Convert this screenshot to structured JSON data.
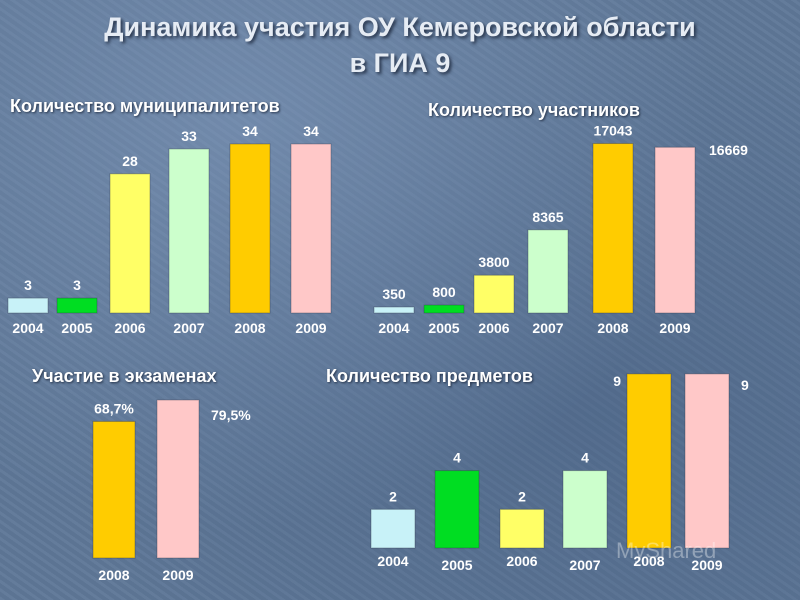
{
  "title": {
    "line1": "Динамика участия ОУ Кемеровской области",
    "line2": "в ГИА 9"
  },
  "colors": {
    "2004": "#c8f2f8",
    "2005": "#00dd22",
    "2006": "#ffff66",
    "2007": "#ccffcc",
    "2008": "#ffcc00",
    "2009": "#ffc8c8"
  },
  "watermark": "MyShared",
  "chart_data": [
    {
      "type": "bar",
      "title": "Количество муниципалитетов",
      "categories": [
        "2004",
        "2005",
        "2006",
        "2007",
        "2008",
        "2009"
      ],
      "values": [
        3,
        3,
        28,
        33,
        34,
        34
      ],
      "labels": [
        "3",
        "3",
        "28",
        "33",
        "34",
        "34"
      ],
      "ylim": [
        0,
        36
      ]
    },
    {
      "type": "bar",
      "title": "Количество участников",
      "categories": [
        "2004",
        "2005",
        "2006",
        "2007",
        "2008",
        "2009"
      ],
      "values": [
        350,
        800,
        3800,
        8365,
        17043,
        16669
      ],
      "labels": [
        "350",
        "800",
        "3800",
        "8365",
        "17043",
        "16669"
      ],
      "ylim": [
        0,
        18000
      ]
    },
    {
      "type": "bar",
      "title": "Участие в экзаменах",
      "categories": [
        "2008",
        "2009"
      ],
      "values": [
        68.7,
        79.5
      ],
      "labels": [
        "68,7%",
        "79,5%"
      ],
      "ylim": [
        0,
        83
      ]
    },
    {
      "type": "bar",
      "title": "Количество предметов",
      "categories": [
        "2004",
        "2005",
        "2006",
        "2007",
        "2008",
        "2009"
      ],
      "values": [
        2,
        4,
        2,
        4,
        9,
        9
      ],
      "labels": [
        "2",
        "4",
        "2",
        "4",
        "9",
        "9"
      ],
      "ylim": [
        0,
        9.2
      ]
    }
  ]
}
